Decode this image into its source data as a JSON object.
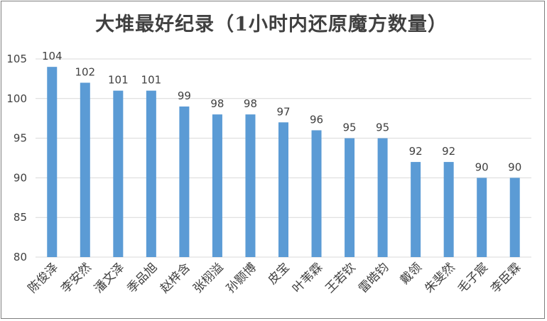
{
  "chart_data": {
    "type": "bar",
    "title": "大堆最好纪录（1小时内还原魔方数量）",
    "categories": [
      "陈俊泽",
      "李安然",
      "潘文泽",
      "季品旭",
      "赵梓含",
      "张栩溢",
      "孙颢博",
      "皮宝",
      "叶苇霖",
      "王若钦",
      "雷皓钧",
      "戴领",
      "朱斐然",
      "毛子宸",
      "李臣霖"
    ],
    "values": [
      104,
      102,
      101,
      101,
      99,
      98,
      98,
      97,
      96,
      95,
      95,
      92,
      92,
      90,
      90
    ],
    "ylim": [
      80,
      105
    ],
    "yticks": [
      80,
      85,
      90,
      95,
      100,
      105
    ],
    "grid": true,
    "bar_color": "#5b9bd5",
    "xlabel": "",
    "ylabel": ""
  }
}
